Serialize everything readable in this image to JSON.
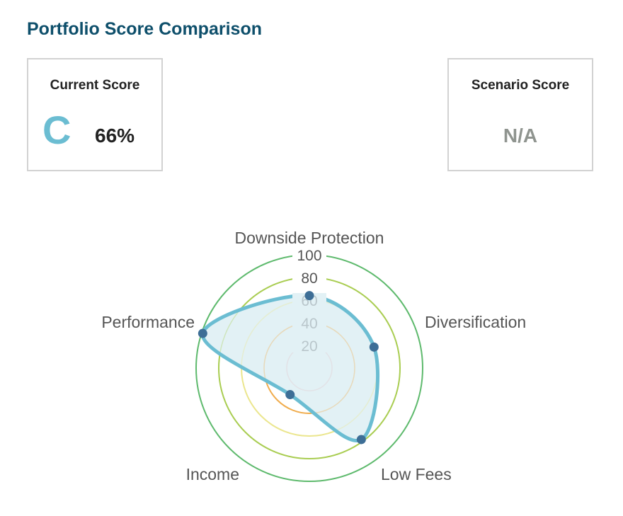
{
  "header": {
    "title": "Portfolio Score Comparison"
  },
  "current_score": {
    "label": "Current Score",
    "grade": "C",
    "percent": "66%",
    "grade_color": "#6bbdd2"
  },
  "scenario_score": {
    "label": "Scenario Score",
    "value": "N/A"
  },
  "colors": {
    "title": "#0e4f6b",
    "series_line": "#6bbdd2",
    "series_fill": "#e2f1f5",
    "point": "#3d6e96",
    "rings": [
      "#e3c6ca",
      "#f0ac4c",
      "#ebe68e",
      "#aacd52",
      "#5fba6e"
    ]
  },
  "chart_data": {
    "type": "radar",
    "title": "",
    "axes": [
      "Downside Protection",
      "Diversification",
      "Low Fees",
      "Income",
      "Performance"
    ],
    "range": [
      0,
      100
    ],
    "ticks": [
      20,
      40,
      60,
      80,
      100
    ],
    "series": [
      {
        "name": "Current Score",
        "values": [
          64,
          60,
          78,
          29,
          99
        ]
      }
    ],
    "grid": "circular",
    "legend": "none"
  }
}
